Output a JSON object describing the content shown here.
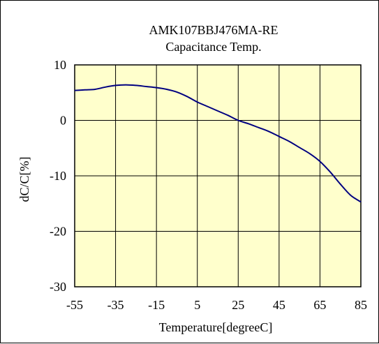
{
  "chart_data": {
    "type": "line",
    "title": "AMK107BBJ476MA-RE",
    "subtitle": "Capacitance Temp.",
    "xlabel": "Temperature[degreeC]",
    "ylabel": "dC/C[%]",
    "xlim": [
      -55,
      85
    ],
    "ylim": [
      -30,
      10
    ],
    "xticks": [
      -55,
      -35,
      -15,
      5,
      25,
      45,
      65,
      85
    ],
    "yticks": [
      -30,
      -20,
      -10,
      0,
      10
    ],
    "grid": true,
    "legend": "none",
    "series": [
      {
        "color": "#000080",
        "x": [
          -55,
          -50,
          -45,
          -40,
          -35,
          -30,
          -25,
          -20,
          -15,
          -10,
          -5,
          0,
          5,
          10,
          15,
          20,
          25,
          30,
          35,
          40,
          45,
          50,
          55,
          60,
          65,
          70,
          75,
          80,
          85
        ],
        "y": [
          5.4,
          5.5,
          5.6,
          6.0,
          6.3,
          6.4,
          6.3,
          6.1,
          5.9,
          5.6,
          5.1,
          4.3,
          3.3,
          2.5,
          1.7,
          0.9,
          0.0,
          -0.6,
          -1.3,
          -2.0,
          -2.9,
          -3.8,
          -4.9,
          -6.0,
          -7.4,
          -9.3,
          -11.5,
          -13.5,
          -14.7
        ]
      }
    ],
    "colors": {
      "plot_background": "#FFFFCC",
      "grid": "#000000",
      "line": "#000080"
    }
  }
}
